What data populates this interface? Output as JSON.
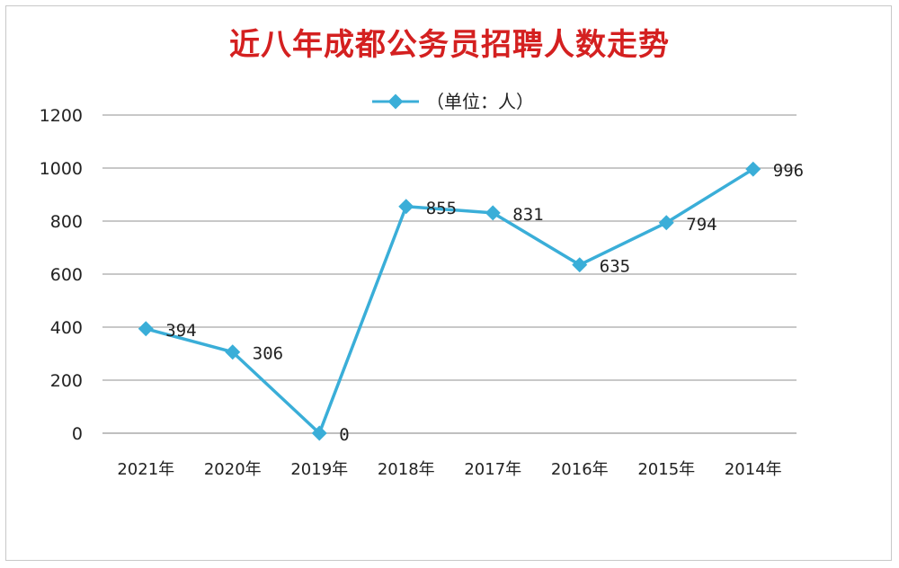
{
  "chart_data": {
    "type": "line",
    "title": "近八年成都公务员招聘人数走势",
    "legend": {
      "label": "（单位：人）",
      "position": "top"
    },
    "categories": [
      "2021年",
      "2020年",
      "2019年",
      "2018年",
      "2017年",
      "2016年",
      "2015年",
      "2014年"
    ],
    "series": [
      {
        "values": [
          394,
          306,
          0,
          855,
          831,
          635,
          794,
          996
        ],
        "color": "#3aaed8"
      }
    ],
    "ylim": [
      0,
      1200
    ],
    "yticks": [
      0,
      200,
      400,
      600,
      800,
      1000,
      1200
    ],
    "grid": true,
    "data_labels": true
  }
}
